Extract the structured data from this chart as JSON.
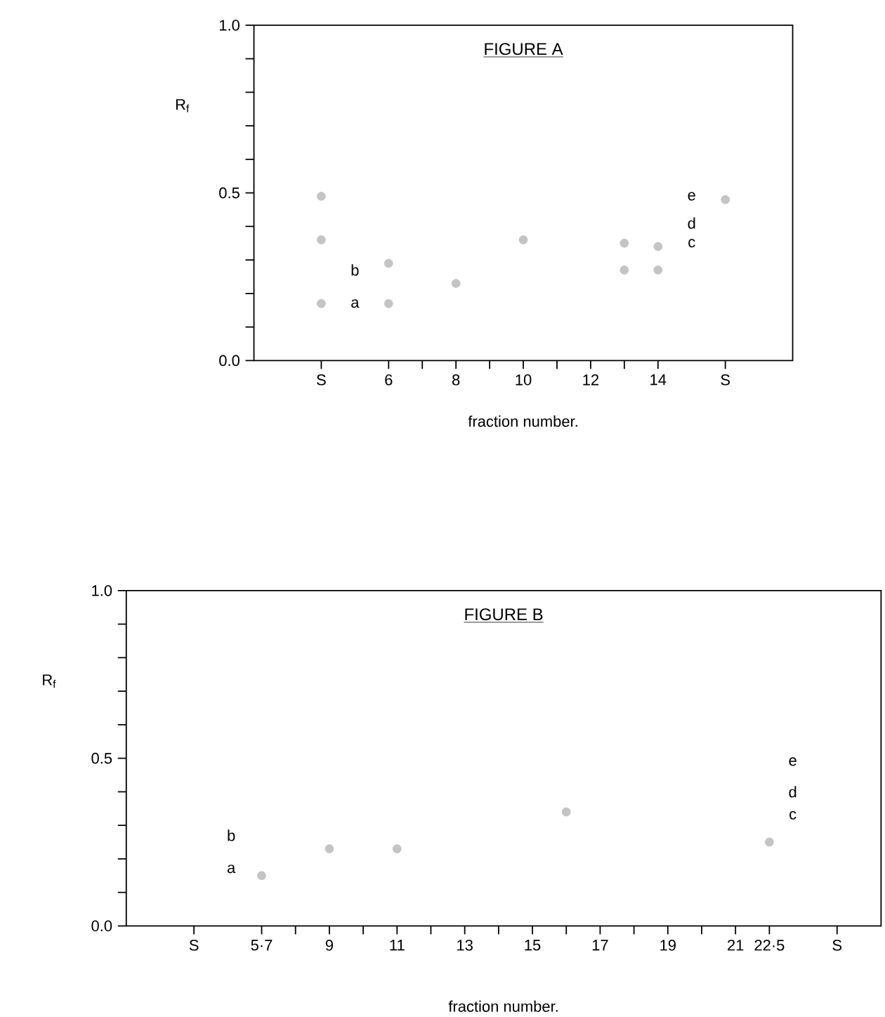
{
  "chart_data": [
    {
      "type": "scatter",
      "title": "FIGURE A",
      "xlabel": "fraction number.",
      "ylabel": "R$_{f}$",
      "xlim": [
        2,
        18
      ],
      "ylim": [
        0,
        1
      ],
      "xticks": [
        {
          "value": 4,
          "label": "S"
        },
        6,
        {
          "value": 7,
          "label": null
        },
        8,
        {
          "value": 9,
          "label": null
        },
        10,
        {
          "value": 11,
          "label": null
        },
        12,
        {
          "value": 13,
          "label": null
        },
        14,
        {
          "value": 16,
          "label": "S"
        }
      ],
      "yticks": [
        {
          "value": 0,
          "label": "0.0"
        },
        {
          "value": 0.1,
          "label": null
        },
        {
          "value": 0.2,
          "label": null
        },
        {
          "value": 0.3,
          "label": null
        },
        {
          "value": 0.4,
          "label": null
        },
        {
          "value": 0.5,
          "label": "0.5"
        },
        {
          "value": 0.6,
          "label": null
        },
        {
          "value": 0.7,
          "label": null
        },
        {
          "value": 0.8,
          "label": null
        },
        {
          "value": 0.9,
          "label": null
        },
        {
          "value": 1,
          "label": "1.0"
        }
      ],
      "annotations": [
        "a",
        "b",
        "c",
        "d",
        "e"
      ],
      "series": [
        {
          "color": "#c4c4c4",
          "marker": "circle",
          "x": [
            4,
            4,
            4,
            6,
            6,
            8,
            10,
            13,
            13,
            14,
            14,
            16
          ],
          "values": [
            0.49,
            0.36,
            0.17,
            0.29,
            0.17,
            0.23,
            0.36,
            0.35,
            0.27,
            0.34,
            0.27,
            0.48
          ]
        }
      ]
    },
    {
      "type": "scatter",
      "title": "FIGURE B",
      "xlabel": "fraction number.",
      "ylabel": "R$_{f}$",
      "xlim": [
        3,
        25.3
      ],
      "ylim": [
        0,
        1
      ],
      "xticks": [
        {
          "value": 5,
          "label": "S"
        },
        {
          "value": 7,
          "label": "5·7"
        },
        {
          "value": 8,
          "label": null
        },
        9,
        {
          "value": 10,
          "label": null
        },
        11,
        {
          "value": 12,
          "label": null
        },
        13,
        {
          "value": 14,
          "label": null
        },
        15,
        {
          "value": 16,
          "label": null
        },
        17,
        {
          "value": 18,
          "label": null
        },
        19,
        {
          "value": 20,
          "label": null
        },
        21,
        {
          "value": 22,
          "label": "22·5"
        },
        {
          "value": 24,
          "label": "S"
        }
      ],
      "yticks": [
        {
          "value": 0,
          "label": "0.0"
        },
        {
          "value": 0.1,
          "label": null
        },
        {
          "value": 0.2,
          "label": null
        },
        {
          "value": 0.3,
          "label": null
        },
        {
          "value": 0.4,
          "label": null
        },
        {
          "value": 0.5,
          "label": "0.5"
        },
        {
          "value": 0.6,
          "label": null
        },
        {
          "value": 0.7,
          "label": null
        },
        {
          "value": 0.8,
          "label": null
        },
        {
          "value": 0.9,
          "label": null
        },
        {
          "value": 1,
          "label": "1.0"
        }
      ],
      "annotations": [
        "a",
        "b",
        "c",
        "d",
        "e"
      ],
      "series": [
        {
          "color": "#c4c4c4",
          "marker": "circle",
          "x": [
            7,
            9,
            11,
            16,
            22
          ],
          "values": [
            0.15,
            0.23,
            0.23,
            0.34,
            0.25
          ]
        }
      ]
    }
  ]
}
